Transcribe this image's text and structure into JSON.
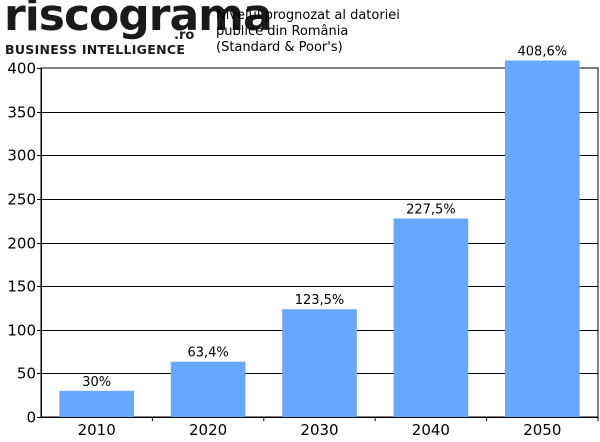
{
  "logo": {
    "wordmark": "riscograma",
    "domain": ".ro",
    "tagline": "BUSINESS INTELLIGENCE"
  },
  "chart_data": {
    "type": "bar",
    "title_lines": [
      "Nivelul prognozat al datoriei",
      "publice din România",
      "(Standard & Poor's)"
    ],
    "categories": [
      "2010",
      "2020",
      "2030",
      "2040",
      "2050"
    ],
    "values": [
      30,
      63.4,
      123.5,
      227.5,
      408.6
    ],
    "data_labels": [
      "30%",
      "63,4%",
      "123,5%",
      "227,5%",
      "408,6%"
    ],
    "ylim": [
      0,
      400
    ],
    "yticks": [
      0,
      50,
      100,
      150,
      200,
      250,
      300,
      350,
      400
    ],
    "grid": true,
    "bar_color": "#66a8ff",
    "xlabel": "",
    "ylabel": ""
  }
}
